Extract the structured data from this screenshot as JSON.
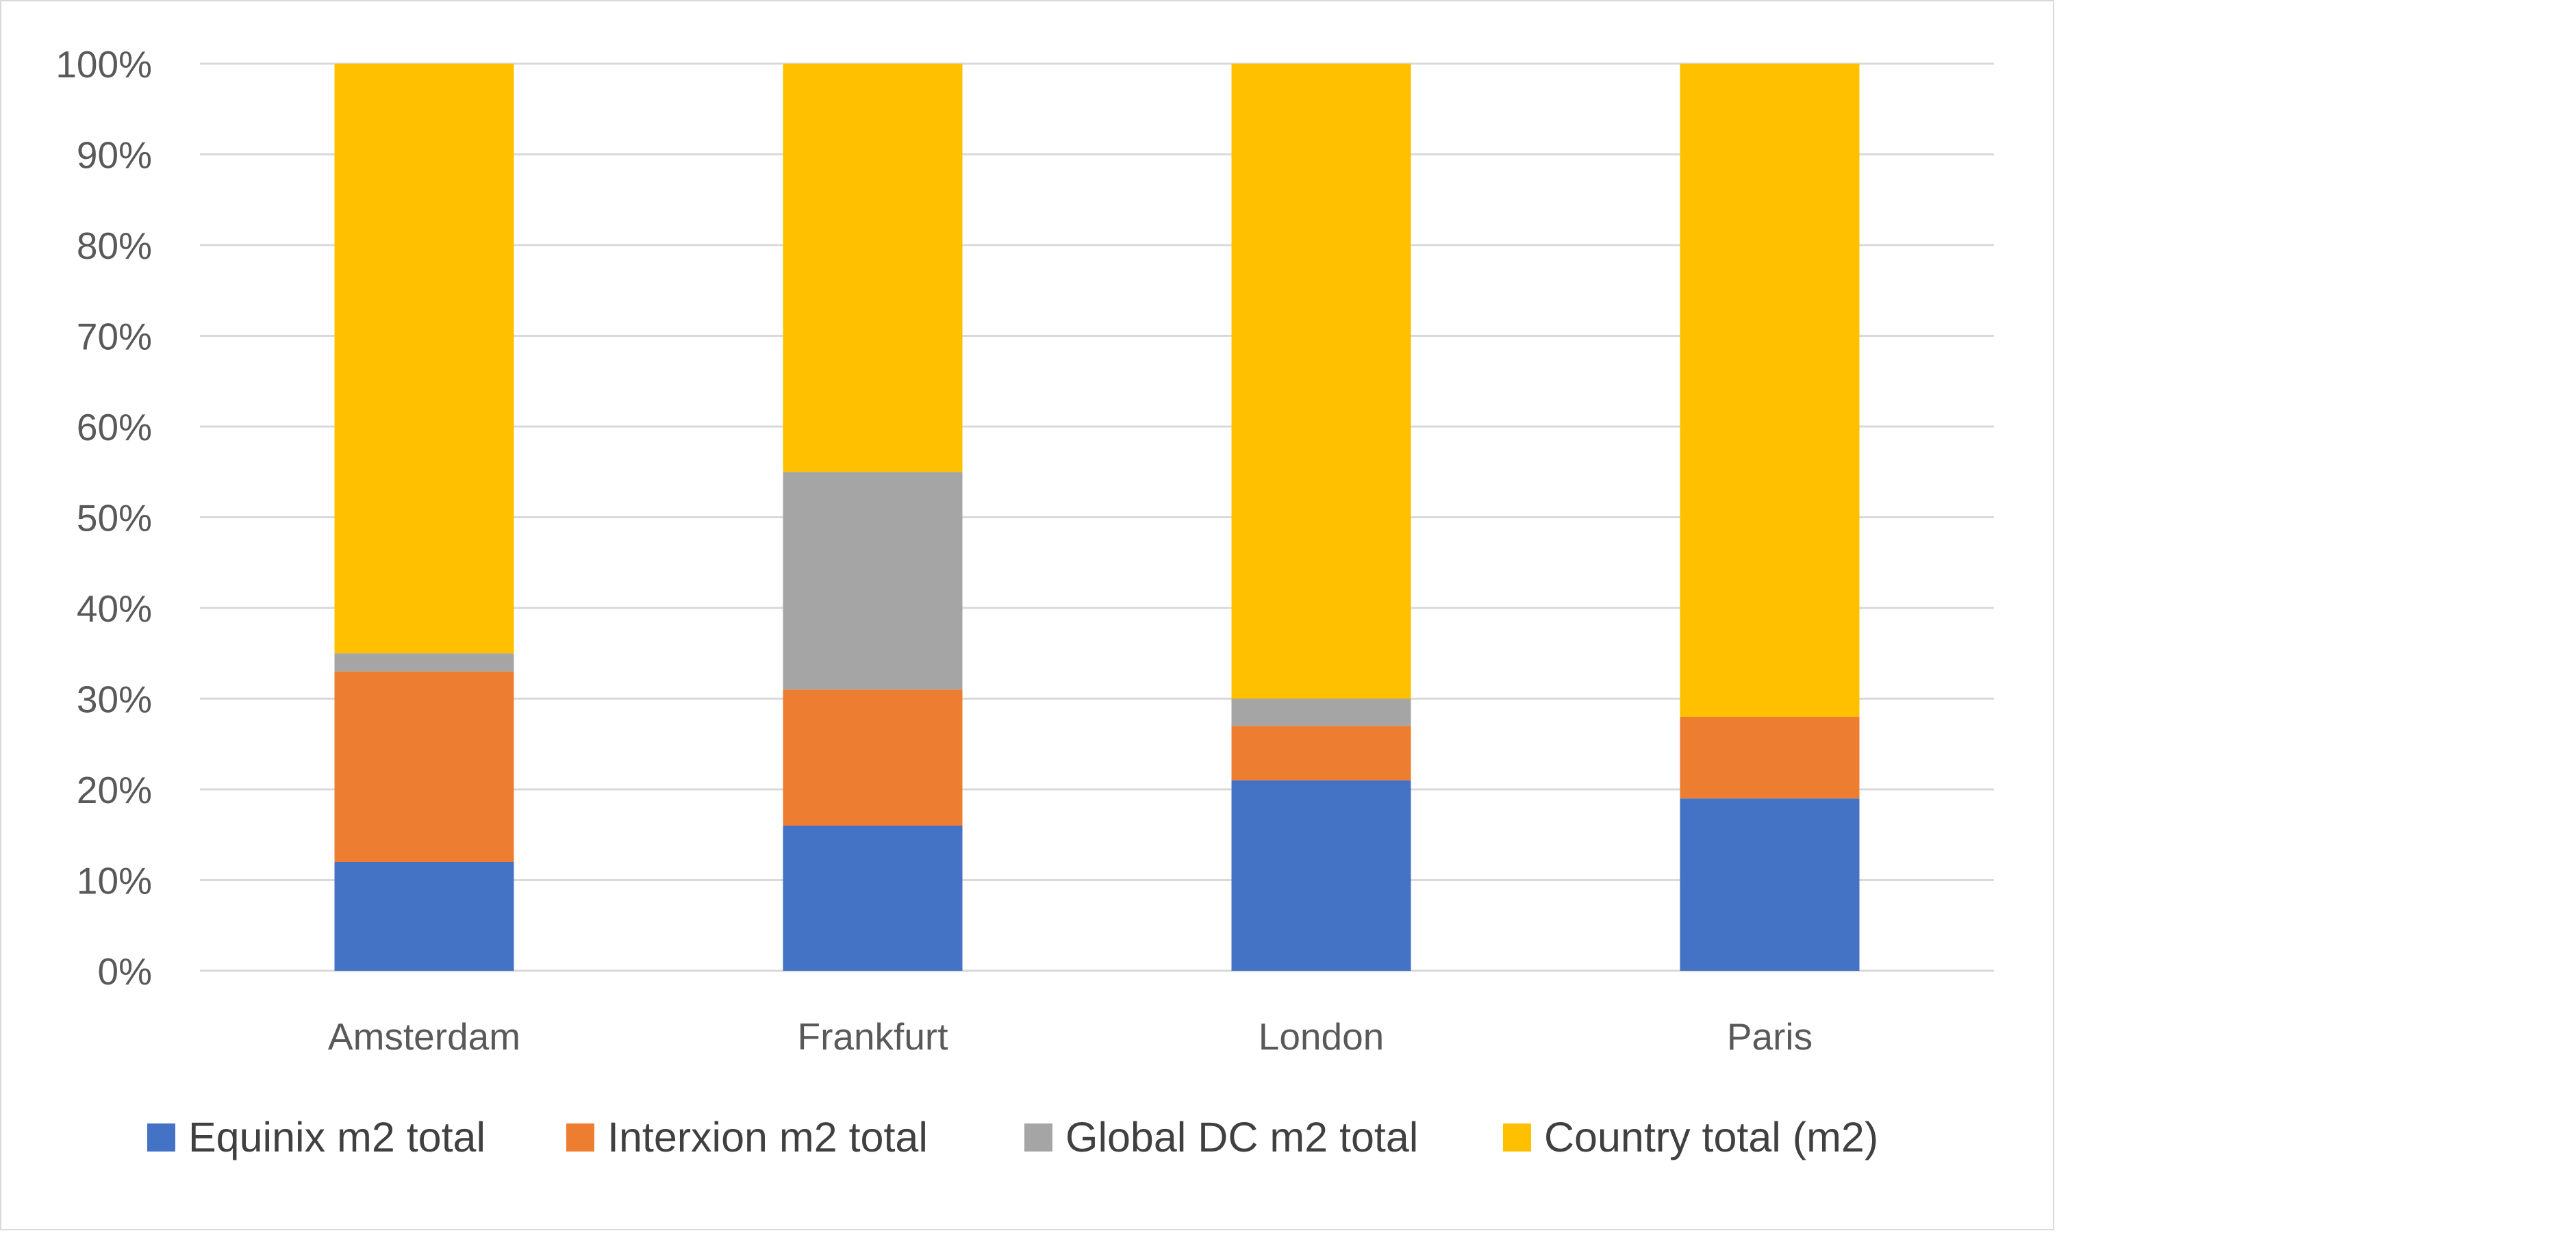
{
  "chart_data": {
    "type": "bar",
    "stacked": true,
    "percent_stacked": true,
    "categories": [
      "Amsterdam",
      "Frankfurt",
      "London",
      "Paris"
    ],
    "series": [
      {
        "name": "Equinix m2 total",
        "color": "#4472c4",
        "values": [
          12,
          16,
          21,
          19
        ]
      },
      {
        "name": "Interxion m2 total",
        "color": "#ed7d31",
        "values": [
          21,
          15,
          6,
          9
        ]
      },
      {
        "name": "Global DC m2 total",
        "color": "#a5a5a5",
        "values": [
          2,
          24,
          3,
          0
        ]
      },
      {
        "name": "Country total (m2)",
        "color": "#ffc000",
        "values": [
          65,
          45,
          70,
          72
        ]
      }
    ],
    "yticks": [
      "0%",
      "10%",
      "20%",
      "30%",
      "40%",
      "50%",
      "60%",
      "70%",
      "80%",
      "90%",
      "100%"
    ],
    "ylim": [
      0,
      100
    ],
    "grid": true,
    "legend": "bottom"
  }
}
